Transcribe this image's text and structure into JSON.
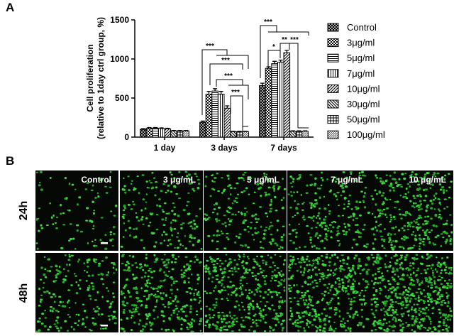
{
  "panel_a_label": "A",
  "panel_b_label": "B",
  "chart_data": {
    "type": "bar",
    "y_label_lines": [
      "Cell proliferation",
      "(relative to 1day ctrl group, %)"
    ],
    "categories": [
      "1 day",
      "3 days",
      "7 days"
    ],
    "ylim": [
      0,
      1500
    ],
    "yticks": [
      0,
      500,
      1000,
      1500
    ],
    "series": [
      {
        "name": "Control",
        "color": "#000000",
        "pattern": "crosshatch",
        "values": [
          100,
          190,
          660
        ],
        "errors": [
          8,
          15,
          30
        ]
      },
      {
        "name": "3μg/ml",
        "color": "#000000",
        "pattern": "checker",
        "values": [
          115,
          550,
          880
        ],
        "errors": [
          8,
          35,
          20
        ]
      },
      {
        "name": "5μg/ml",
        "color": "#000000",
        "pattern": "hlines",
        "values": [
          115,
          590,
          940
        ],
        "errors": [
          8,
          30,
          30
        ]
      },
      {
        "name": "7μg/ml",
        "color": "#000000",
        "pattern": "vlines",
        "values": [
          110,
          550,
          960
        ],
        "errors": [
          8,
          35,
          25
        ]
      },
      {
        "name": "10μg/ml",
        "color": "#000000",
        "pattern": "diag",
        "values": [
          105,
          370,
          1080
        ],
        "errors": [
          8,
          30,
          30
        ]
      },
      {
        "name": "30μg/ml",
        "color": "#000000",
        "pattern": "antidiag",
        "values": [
          80,
          70,
          75
        ],
        "errors": [
          5,
          5,
          5
        ]
      },
      {
        "name": "50μg/ml",
        "color": "#000000",
        "pattern": "grid",
        "values": [
          80,
          70,
          75
        ],
        "errors": [
          5,
          5,
          5
        ]
      },
      {
        "name": "100μg/ml",
        "color": "#000000",
        "pattern": "dense",
        "values": [
          80,
          70,
          75
        ],
        "errors": [
          5,
          5,
          5
        ]
      }
    ],
    "annotations": [
      {
        "text": "***"
      },
      {
        "text": "***"
      },
      {
        "text": "***"
      },
      {
        "text": "***"
      },
      {
        "text": "***"
      },
      {
        "text": "*"
      },
      {
        "text": "**"
      },
      {
        "text": "***"
      }
    ]
  },
  "images": {
    "columns": [
      "Control",
      "3 μg/mL",
      "5 μg/mL",
      "7 μg/mL",
      "10 μg/mL"
    ],
    "rows": [
      "24h",
      "48h"
    ]
  }
}
